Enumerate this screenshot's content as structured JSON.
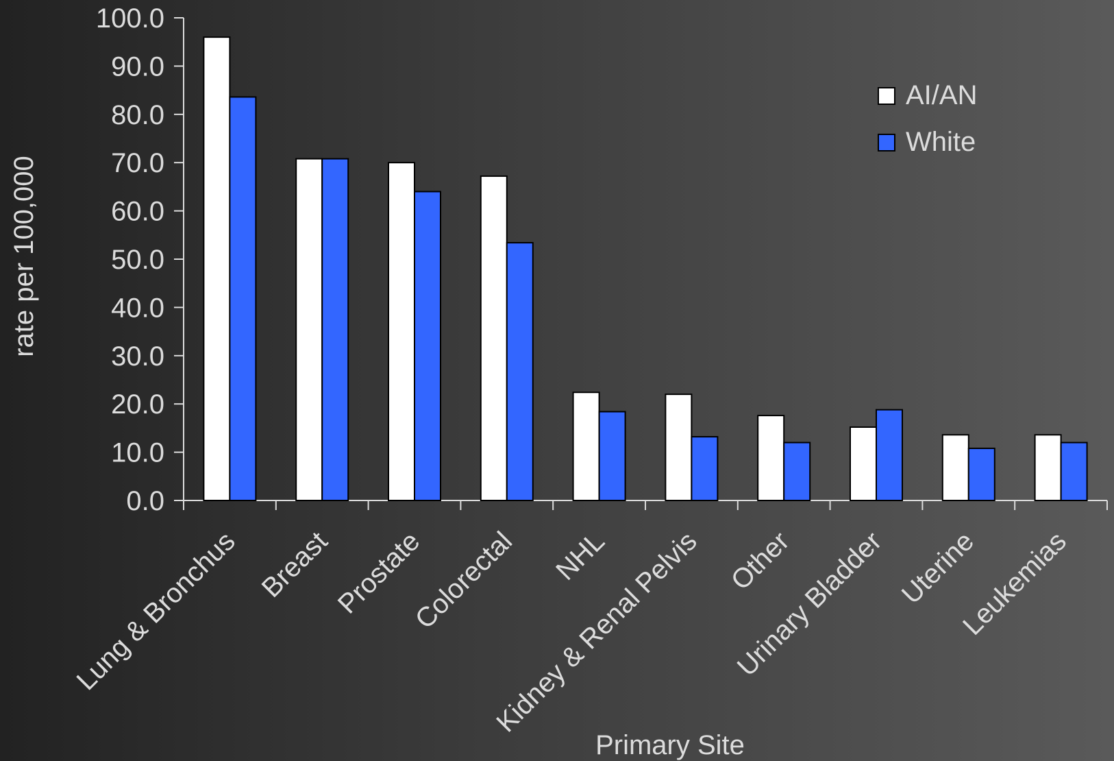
{
  "chart_data": {
    "type": "bar",
    "xlabel": "Primary Site",
    "ylabel": "rate per 100,000",
    "ylim": [
      0,
      100
    ],
    "yticks": [
      "0.0",
      "10.0",
      "20.0",
      "30.0",
      "40.0",
      "50.0",
      "60.0",
      "70.0",
      "80.0",
      "90.0",
      "100.0"
    ],
    "categories": [
      "Lung & Bronchus",
      "Breast",
      "Prostate",
      "Colorectal",
      "NHL",
      "Kidney & Renal Pelvis",
      "Other",
      "Urinary Bladder",
      "Uterine",
      "Leukemias"
    ],
    "series": [
      {
        "name": "AI/AN",
        "color": "#ffffff",
        "values": [
          96.0,
          70.8,
          70.0,
          67.2,
          22.4,
          22.0,
          17.6,
          15.2,
          13.6,
          13.6
        ]
      },
      {
        "name": "White",
        "color": "#3366ff",
        "values": [
          83.6,
          70.8,
          64.0,
          53.4,
          18.4,
          13.2,
          12.0,
          18.8,
          10.8,
          12.0
        ]
      }
    ],
    "grid": false,
    "legend_position": "top-right"
  }
}
